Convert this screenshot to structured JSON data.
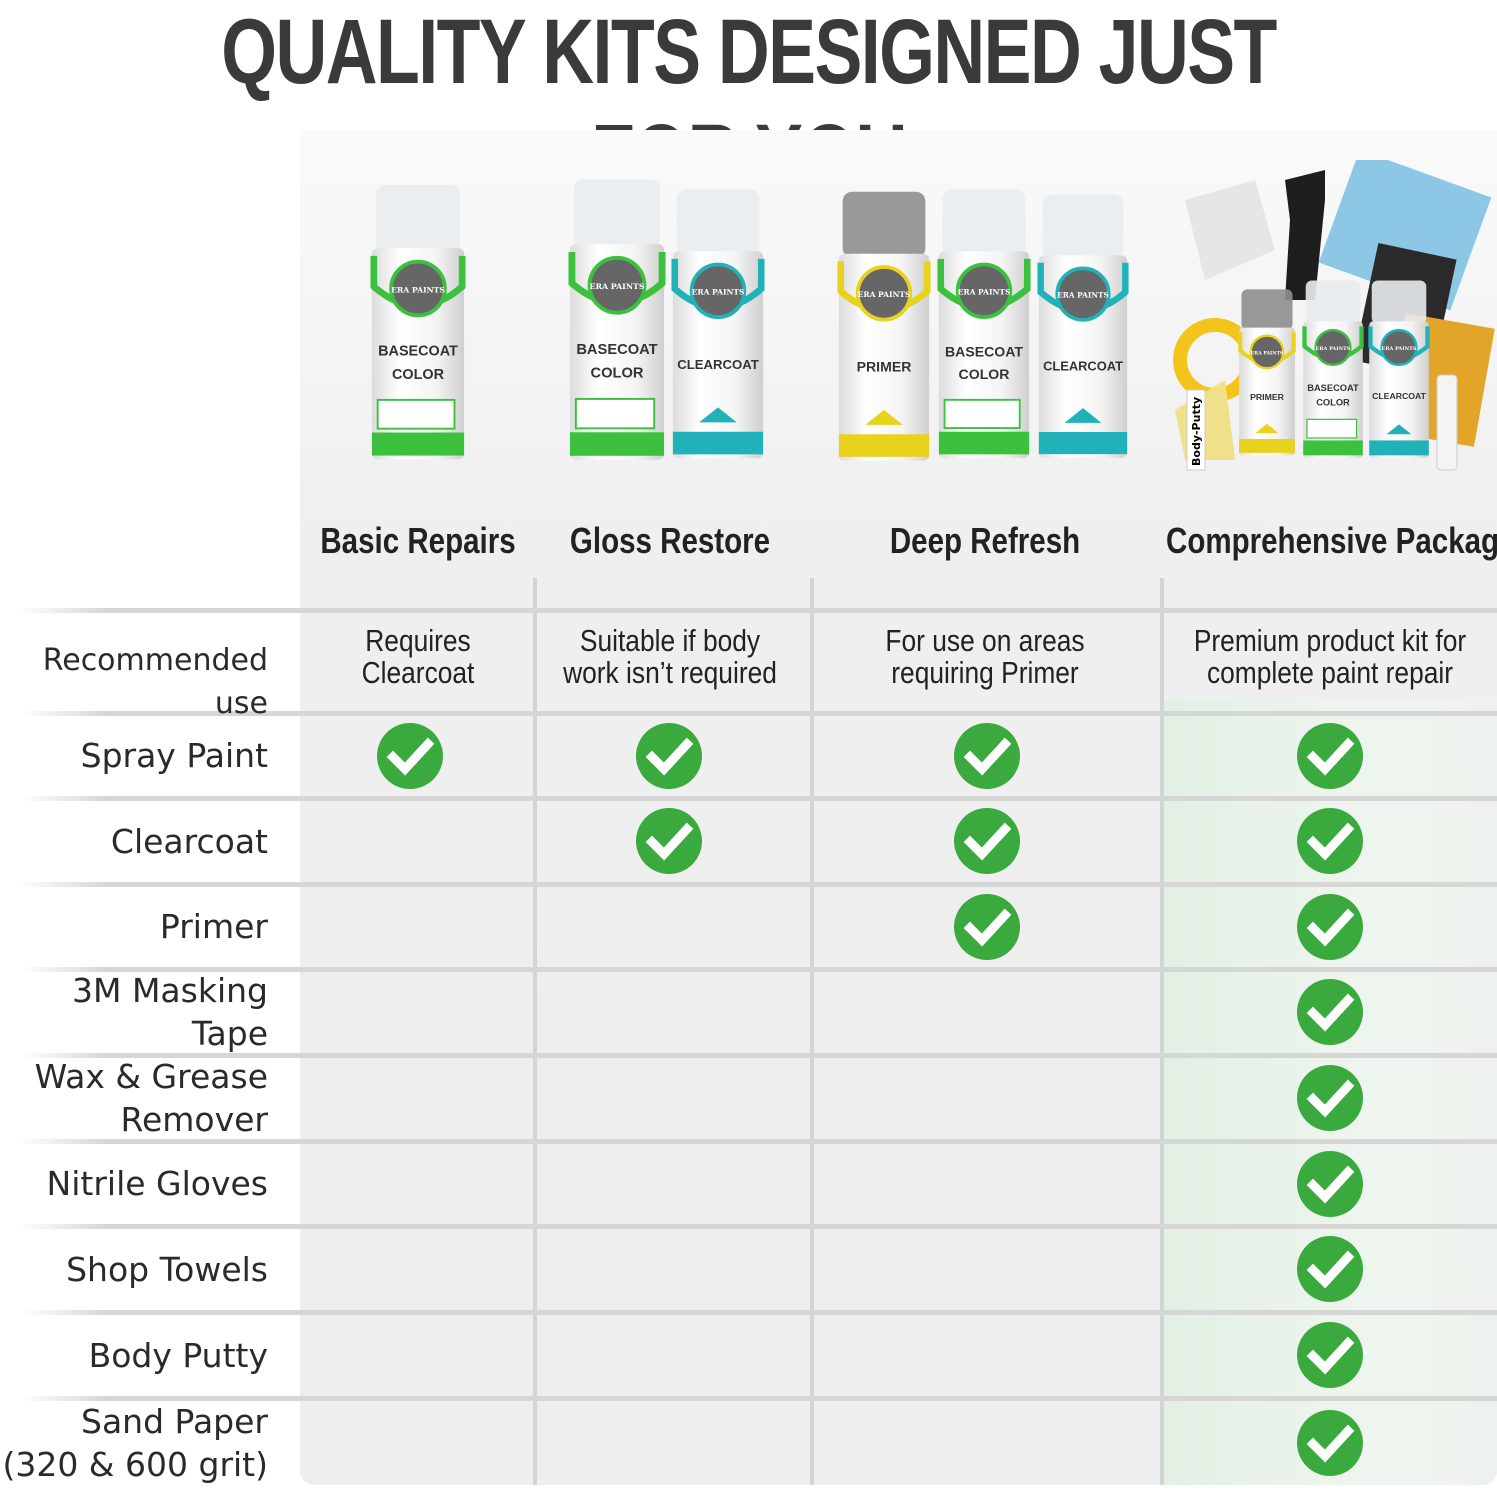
{
  "title": "QUALITY KITS DESIGNED JUST FOR YOU",
  "brand": "ERA PAINTS",
  "can_labels": {
    "basecoat": [
      "BASECOAT",
      "COLOR"
    ],
    "clearcoat": "CLEARCOAT",
    "primer": "PRIMER",
    "body_putty": "Body-Putty"
  },
  "colors": {
    "check": "#3aaa3f",
    "basecoat_band": "#3cc13f",
    "clearcoat_band": "#20b2b8",
    "primer_band": "#e8d21e"
  },
  "kits": [
    {
      "name": "Basic Repairs",
      "recommended_use": [
        "Requires",
        "Clearcoat"
      ]
    },
    {
      "name": "Gloss Restore",
      "recommended_use": [
        "Suitable if body",
        "work isn’t required"
      ]
    },
    {
      "name": "Deep Refresh",
      "recommended_use": [
        "For use on areas",
        "requiring Primer"
      ]
    },
    {
      "name": "Comprehensive Package",
      "recommended_use": [
        "Premium product kit for",
        "complete paint repair"
      ]
    }
  ],
  "recommended_use_label": "Recommended use",
  "features": [
    {
      "label": [
        "Spray Paint"
      ],
      "included": [
        true,
        true,
        true,
        true
      ]
    },
    {
      "label": [
        "Clearcoat"
      ],
      "included": [
        false,
        true,
        true,
        true
      ]
    },
    {
      "label": [
        "Primer"
      ],
      "included": [
        false,
        false,
        true,
        true
      ]
    },
    {
      "label": [
        "3M Masking",
        "Tape"
      ],
      "included": [
        false,
        false,
        false,
        true
      ]
    },
    {
      "label": [
        "Wax & Grease",
        "Remover"
      ],
      "included": [
        false,
        false,
        false,
        true
      ]
    },
    {
      "label": [
        "Nitrile Gloves"
      ],
      "included": [
        false,
        false,
        false,
        true
      ]
    },
    {
      "label": [
        "Shop Towels"
      ],
      "included": [
        false,
        false,
        false,
        true
      ]
    },
    {
      "label": [
        "Body Putty"
      ],
      "included": [
        false,
        false,
        false,
        true
      ]
    },
    {
      "label": [
        "Sand Paper",
        "(320 & 600 grit)"
      ],
      "included": [
        false,
        false,
        false,
        true
      ]
    }
  ]
}
